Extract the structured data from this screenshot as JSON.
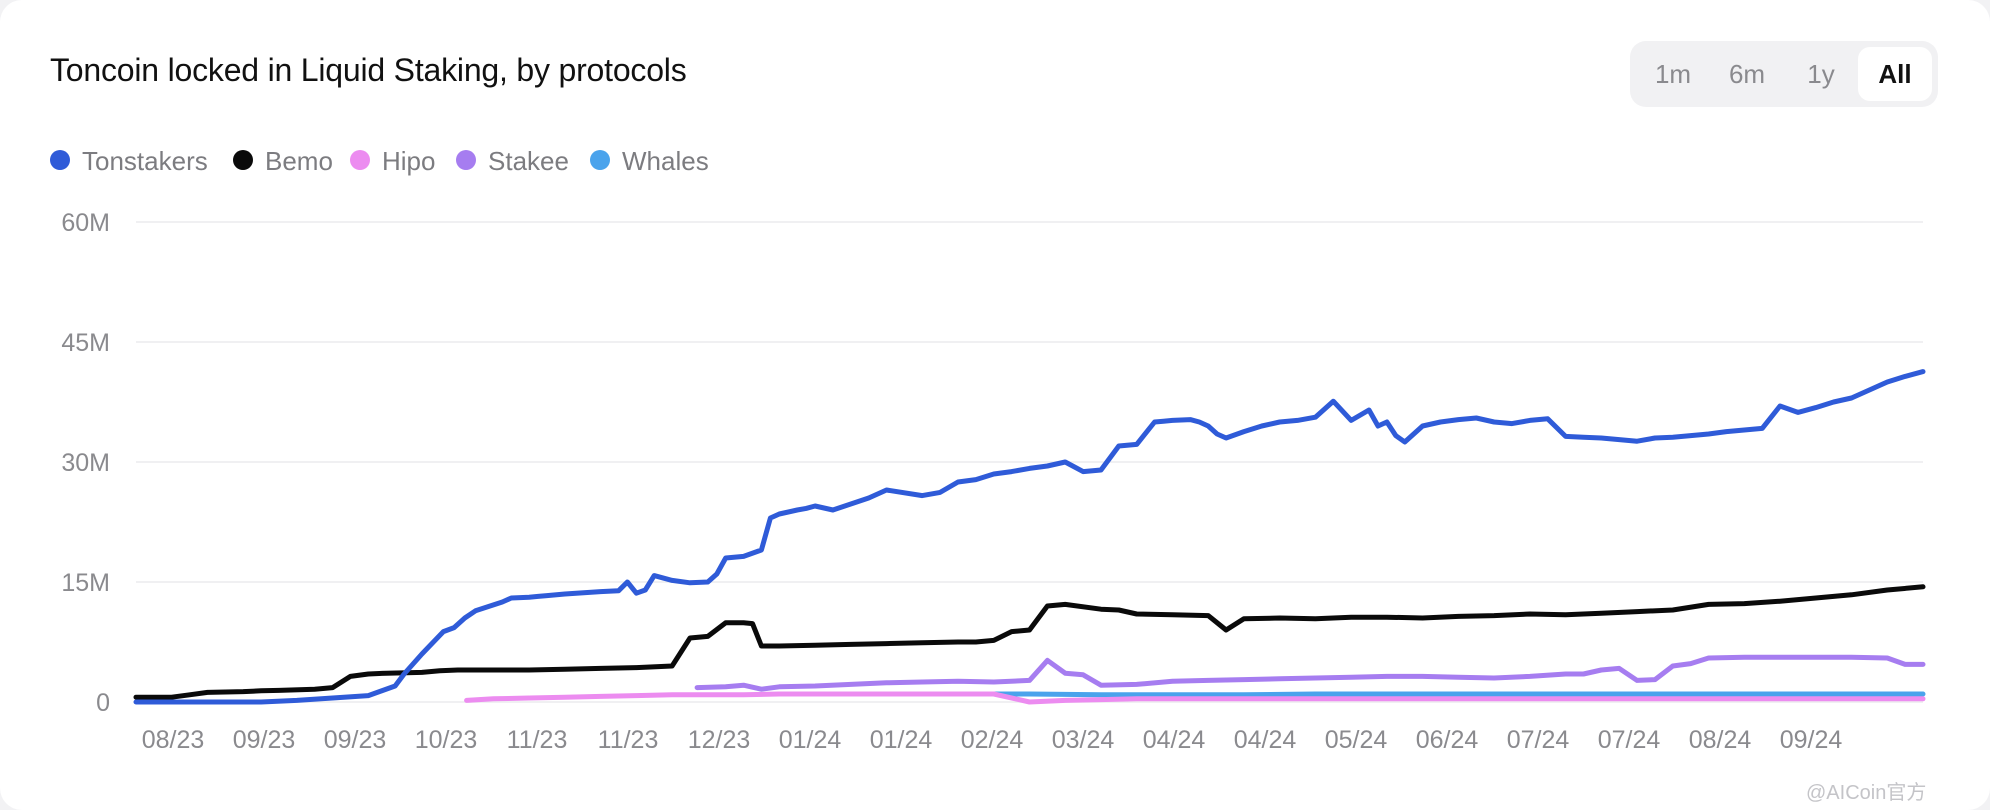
{
  "header": {
    "title": "Toncoin locked in Liquid Staking, by protocols"
  },
  "range_selector": {
    "options": [
      "1m",
      "6m",
      "1y",
      "All"
    ],
    "active": "All"
  },
  "watermark": "@AICoin官方",
  "chart_data": {
    "type": "line",
    "title": "Toncoin locked in Liquid Staking, by protocols",
    "ylim": [
      0,
      60000000
    ],
    "y_ticks": [
      0,
      15000000,
      30000000,
      45000000,
      60000000
    ],
    "y_tick_labels": [
      "0",
      "15M",
      "30M",
      "45M",
      "60M"
    ],
    "x_tick_labels": [
      "08/23",
      "09/23",
      "09/23",
      "10/23",
      "11/23",
      "11/23",
      "12/23",
      "01/24",
      "01/24",
      "02/24",
      "03/24",
      "04/24",
      "04/24",
      "05/24",
      "06/24",
      "07/24",
      "07/24",
      "08/24",
      "09/24"
    ],
    "x_range": [
      0,
      100
    ],
    "grid": true,
    "legend_position": "top-left",
    "series": [
      {
        "name": "Tonstakers",
        "color": "#2f5bd8",
        "x": [
          0,
          3,
          7,
          9,
          11,
          13,
          14.5,
          15,
          16,
          17.2,
          17.8,
          18.4,
          19,
          20.5,
          21,
          22,
          22.5,
          23,
          24,
          26,
          27,
          27.5,
          28,
          28.5,
          29,
          30,
          31,
          32,
          32.5,
          33,
          34,
          35,
          35.5,
          36,
          37,
          37.5,
          38,
          39,
          41,
          42,
          44,
          45,
          46,
          47,
          48,
          49,
          50,
          51,
          52,
          53,
          54,
          55,
          56,
          57,
          57.5,
          58,
          59,
          59.5,
          60,
          60.5,
          61,
          62,
          63,
          64,
          65,
          66,
          67,
          68,
          69,
          69.5,
          70,
          70.5,
          71,
          72,
          73,
          74,
          75,
          76,
          77,
          78,
          79,
          80,
          81,
          82,
          83,
          84,
          85,
          86,
          87,
          88,
          89,
          90,
          91,
          92,
          93,
          94,
          95,
          96,
          97,
          98,
          99,
          100
        ],
        "values": [
          0,
          0,
          0,
          200000,
          500000,
          800000,
          2000000,
          3500000,
          6000000,
          8800000,
          9300000,
          10500000,
          11400000,
          12500000,
          13000000,
          13100000,
          13200000,
          13300000,
          13500000,
          13800000,
          13900000,
          15000000,
          13600000,
          14000000,
          15800000,
          15200000,
          14900000,
          15000000,
          16000000,
          18000000,
          18200000,
          19000000,
          23000000,
          23500000,
          24000000,
          24200000,
          24500000,
          24000000,
          25500000,
          26500000,
          25800000,
          26200000,
          27500000,
          27800000,
          28500000,
          28800000,
          29200000,
          29500000,
          30000000,
          28800000,
          29000000,
          32000000,
          32200000,
          35000000,
          35100000,
          35200000,
          35300000,
          35000000,
          34500000,
          33500000,
          33000000,
          33800000,
          34500000,
          35000000,
          35200000,
          35600000,
          37600000,
          35200000,
          36500000,
          34500000,
          35000000,
          33300000,
          32500000,
          34500000,
          35000000,
          35300000,
          35500000,
          35000000,
          34800000,
          35200000,
          35400000,
          33200000,
          33100000,
          33000000,
          32800000,
          32600000,
          33000000,
          33100000,
          33300000,
          33500000,
          33800000,
          34000000,
          34200000,
          37000000,
          36200000,
          36800000,
          37500000,
          38000000,
          39000000,
          40000000,
          40700000,
          41300000
        ]
      },
      {
        "name": "Bemo",
        "color": "#0a0a0a",
        "x": [
          0,
          2,
          3,
          4,
          6,
          7,
          8,
          10,
          11,
          12,
          13,
          14,
          16,
          17,
          18,
          20,
          22,
          24,
          26,
          28,
          30,
          31,
          32,
          33,
          34,
          34.5,
          35,
          36,
          38,
          40,
          42,
          44,
          46,
          47,
          48,
          49,
          50,
          51,
          52,
          54,
          55,
          56,
          58,
          60,
          61,
          62,
          64,
          66,
          68,
          70,
          72,
          74,
          76,
          78,
          80,
          82,
          84,
          86,
          88,
          90,
          92,
          94,
          96,
          98,
          100
        ],
        "values": [
          600000,
          600000,
          900000,
          1200000,
          1300000,
          1400000,
          1450000,
          1600000,
          1800000,
          3200000,
          3500000,
          3600000,
          3700000,
          3900000,
          4000000,
          4000000,
          4000000,
          4100000,
          4200000,
          4300000,
          4500000,
          8000000,
          8200000,
          9900000,
          9900000,
          9800000,
          7000000,
          7000000,
          7100000,
          7200000,
          7300000,
          7400000,
          7500000,
          7500000,
          7700000,
          8800000,
          9000000,
          12000000,
          12200000,
          11600000,
          11500000,
          11000000,
          10900000,
          10800000,
          9000000,
          10400000,
          10500000,
          10400000,
          10600000,
          10600000,
          10500000,
          10700000,
          10800000,
          11000000,
          10900000,
          11100000,
          11300000,
          11500000,
          12200000,
          12300000,
          12600000,
          13000000,
          13400000,
          14000000,
          14400000
        ]
      },
      {
        "name": "Hipo",
        "color": "#ec8cf0",
        "x": [
          18.5,
          20,
          22,
          24,
          26,
          28,
          30,
          32,
          34,
          36,
          38,
          40,
          42,
          44,
          46,
          48,
          50,
          52,
          54,
          56,
          58,
          60,
          62,
          64,
          66,
          68,
          70,
          72,
          74,
          76,
          78,
          80,
          82,
          84,
          86,
          88,
          90,
          92,
          94,
          96,
          98,
          100
        ],
        "values": [
          200000,
          400000,
          500000,
          600000,
          700000,
          800000,
          900000,
          900000,
          900000,
          1000000,
          1000000,
          1000000,
          1000000,
          1000000,
          1000000,
          1000000,
          0,
          200000,
          300000,
          400000,
          400000,
          400000,
          400000,
          400000,
          400000,
          400000,
          400000,
          400000,
          400000,
          400000,
          400000,
          400000,
          400000,
          400000,
          400000,
          400000,
          400000,
          400000,
          400000,
          400000,
          400000,
          400000
        ]
      },
      {
        "name": "Stakee",
        "color": "#a67df0",
        "x": [
          31.4,
          33,
          34,
          35,
          36,
          38,
          40,
          42,
          44,
          46,
          48,
          50,
          51,
          52,
          53,
          54,
          56,
          58,
          60,
          62,
          64,
          66,
          68,
          70,
          72,
          74,
          76,
          78,
          80,
          81,
          82,
          83,
          84,
          85,
          86,
          87,
          88,
          90,
          92,
          94,
          96,
          98,
          99,
          100
        ],
        "values": [
          1800000,
          1900000,
          2100000,
          1600000,
          1900000,
          2000000,
          2200000,
          2400000,
          2500000,
          2600000,
          2500000,
          2700000,
          5200000,
          3600000,
          3400000,
          2100000,
          2200000,
          2600000,
          2700000,
          2800000,
          2900000,
          3000000,
          3100000,
          3200000,
          3200000,
          3100000,
          3000000,
          3200000,
          3500000,
          3500000,
          4000000,
          4200000,
          2700000,
          2800000,
          4500000,
          4800000,
          5500000,
          5600000,
          5600000,
          5600000,
          5600000,
          5500000,
          4700000,
          4700000
        ]
      },
      {
        "name": "Whales",
        "color": "#4aa3ec",
        "x": [
          38.5,
          42,
          46,
          50,
          54,
          58,
          62,
          66,
          70,
          74,
          78,
          82,
          86,
          90,
          94,
          98,
          100
        ],
        "values": [
          1000000,
          1000000,
          1000000,
          1000000,
          900000,
          900000,
          900000,
          1000000,
          1000000,
          1000000,
          1000000,
          1000000,
          1000000,
          1000000,
          1000000,
          1000000,
          1000000
        ]
      }
    ]
  }
}
